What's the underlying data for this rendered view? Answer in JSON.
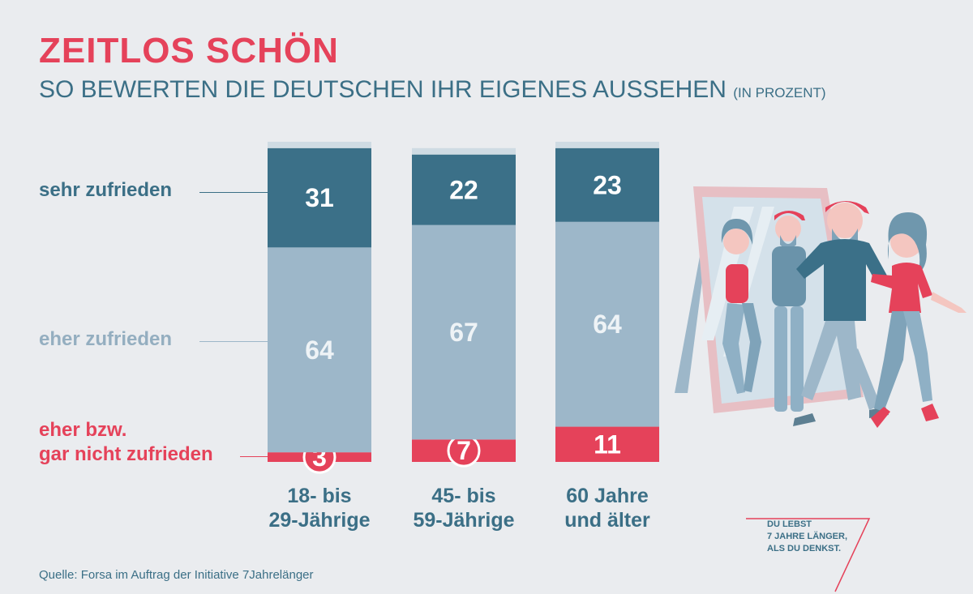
{
  "title": "ZEITLOS SCHÖN",
  "subtitle": "SO BEWERTEN DIE DEUTSCHEN IHR EIGENES AUSSEHEN",
  "subtitle_unit": "(IN PROZENT)",
  "legend": {
    "sehr": "sehr zufrieden",
    "eher": "eher zufrieden",
    "nicht_line1": "eher bzw.",
    "nicht_line2": "gar nicht zufrieden"
  },
  "source": "Quelle: Forsa im Auftrag der Initiative 7Jahrelänger",
  "brand": [
    "DU LEBST",
    "7 JAHRE LÄNGER,",
    "ALS DU DENKST."
  ],
  "colors": {
    "sehr": "#3b7088",
    "eher": "#9db7c9",
    "nicht": "#e5425a",
    "cap": "#cfdbe3",
    "text_dark": "#3b6f86",
    "eher_label": "#94aec0"
  },
  "chart_data": {
    "type": "bar",
    "stacked": true,
    "unit": "Prozent",
    "categories": [
      [
        "18- bis",
        "29-Jährige"
      ],
      [
        "45- bis",
        "59-Jährige"
      ],
      [
        "60 Jahre",
        "und älter"
      ]
    ],
    "series": [
      {
        "name": "eher bzw. gar nicht zufrieden",
        "values": [
          3,
          7,
          11
        ]
      },
      {
        "name": "eher zufrieden",
        "values": [
          64,
          67,
          64
        ]
      },
      {
        "name": "sehr zufrieden",
        "values": [
          31,
          22,
          23
        ]
      }
    ],
    "ylim": [
      0,
      100
    ]
  }
}
